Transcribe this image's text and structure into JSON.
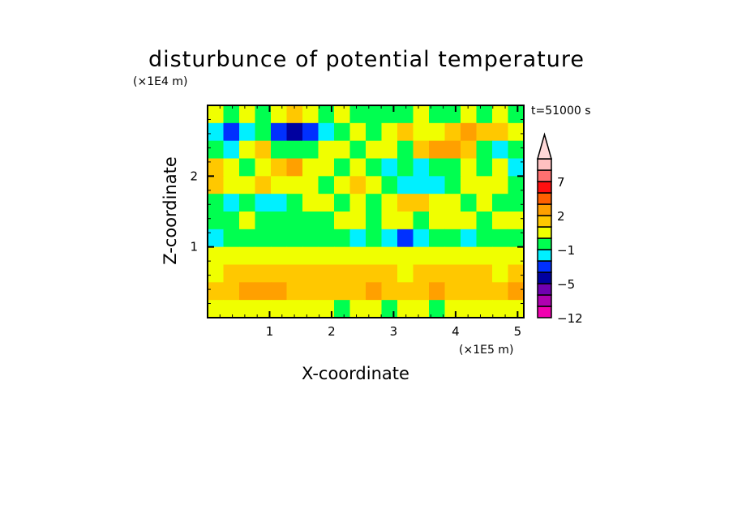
{
  "chart_data": {
    "type": "heatmap",
    "title": "disturbunce of potential temperature",
    "xlabel": "X-coordinate",
    "ylabel": "Z-coordinate",
    "x_unit": "(×1E5 m)",
    "y_unit": "(×1E4 m)",
    "annotation": "t=51000 s",
    "xlim": [
      0,
      5.1
    ],
    "ylim": [
      0,
      3.0
    ],
    "xticks": [
      1,
      2,
      3,
      4,
      5
    ],
    "yticks": [
      1,
      2
    ],
    "colorbar": {
      "levels": [
        -12,
        -9,
        -7,
        -5,
        -3,
        -2,
        -1,
        0,
        1,
        2,
        3,
        5,
        7,
        9,
        12
      ],
      "colors": [
        "#f000b0",
        "#b000b0",
        "#7000b0",
        "#0000a0",
        "#0030ff",
        "#00f0ff",
        "#00ff50",
        "#f0ff00",
        "#ffc800",
        "#ffa000",
        "#ff6000",
        "#ff1010",
        "#ff7070",
        "#ffc0c0"
      ],
      "extend_color": "#ffd8d8",
      "tick_labels": [
        "7",
        "2",
        "−1",
        "−5",
        "−12"
      ],
      "tick_values": [
        7,
        2,
        -1,
        -5,
        -12
      ]
    },
    "grid_note": "rows from top (z=3.0) to bottom (z=0), 20 columns across x 0–5.1",
    "field": [
      [
        0.5,
        -0.5,
        0.5,
        -0.5,
        0.5,
        1.5,
        0.5,
        -0.5,
        0.5,
        -0.5,
        -0.5,
        -0.5,
        -0.5,
        0.5,
        -0.5,
        -0.5,
        0.5,
        -0.5,
        0.5,
        -0.5
      ],
      [
        -1.5,
        -2.5,
        -1.5,
        -0.5,
        -2.5,
        -4,
        -2.5,
        -1.5,
        -0.5,
        0.5,
        -0.5,
        0.5,
        1.5,
        0.5,
        0.5,
        1.5,
        2.5,
        1.5,
        1.5,
        0.5
      ],
      [
        -0.5,
        -1.5,
        0.5,
        1.5,
        -0.5,
        -0.5,
        -0.5,
        0.5,
        0.5,
        -0.5,
        0.5,
        0.5,
        -0.5,
        1.5,
        2.5,
        2.5,
        1.5,
        -0.5,
        -1.5,
        -0.5
      ],
      [
        1.5,
        0.5,
        -0.5,
        0.5,
        1.5,
        2.5,
        0.5,
        0.5,
        -0.5,
        0.5,
        -0.5,
        -1.5,
        -0.5,
        -1.5,
        -0.5,
        -0.5,
        0.5,
        -0.5,
        0.5,
        -1.5
      ],
      [
        1.5,
        0.5,
        0.5,
        1.5,
        0.5,
        0.5,
        0.5,
        -0.5,
        0.5,
        1.5,
        0.5,
        -0.5,
        -1.5,
        -1.5,
        -1.5,
        -0.5,
        0.5,
        0.5,
        0.5,
        -0.5
      ],
      [
        -0.5,
        -1.5,
        -0.5,
        -1.5,
        -1.5,
        -0.5,
        0.5,
        0.5,
        -0.5,
        0.5,
        -0.5,
        0.5,
        1.5,
        1.5,
        0.5,
        0.5,
        -0.5,
        0.5,
        -0.5,
        -0.5
      ],
      [
        -0.5,
        -0.5,
        0.5,
        -0.5,
        -0.5,
        -0.5,
        -0.5,
        -0.5,
        0.5,
        0.5,
        -0.5,
        0.5,
        0.5,
        -0.5,
        0.5,
        0.5,
        0.5,
        -0.5,
        0.5,
        0.5
      ],
      [
        -1.5,
        -0.5,
        -0.5,
        -0.5,
        -0.5,
        -0.5,
        -0.5,
        -0.5,
        -0.5,
        -1.5,
        -0.5,
        -1.5,
        -2.5,
        -1.5,
        -0.5,
        -0.5,
        -1.5,
        -0.5,
        -0.5,
        -0.5
      ],
      [
        0.5,
        0.5,
        0.5,
        0.5,
        0.5,
        0.5,
        0.5,
        0.5,
        0.5,
        0.5,
        0.5,
        0.5,
        0.5,
        0.5,
        0.5,
        0.5,
        0.5,
        0.5,
        0.5,
        0.5
      ],
      [
        0.5,
        1.5,
        1.5,
        1.5,
        1.5,
        1.5,
        1.5,
        1.5,
        1.5,
        1.5,
        1.5,
        1.5,
        0.5,
        1.5,
        1.5,
        1.5,
        1.5,
        1.5,
        0.5,
        1.5
      ],
      [
        1.5,
        1.5,
        2.5,
        2.5,
        2.5,
        1.5,
        1.5,
        1.5,
        1.5,
        1.5,
        2.5,
        1.5,
        1.5,
        1.5,
        2.5,
        1.5,
        1.5,
        1.5,
        1.5,
        2.5
      ],
      [
        0.5,
        0.5,
        0.5,
        0.5,
        0.5,
        0.5,
        0.5,
        0.5,
        -0.5,
        0.5,
        0.5,
        -0.5,
        0.5,
        0.5,
        -0.5,
        0.5,
        0.5,
        0.5,
        0.5,
        0.5
      ]
    ]
  }
}
